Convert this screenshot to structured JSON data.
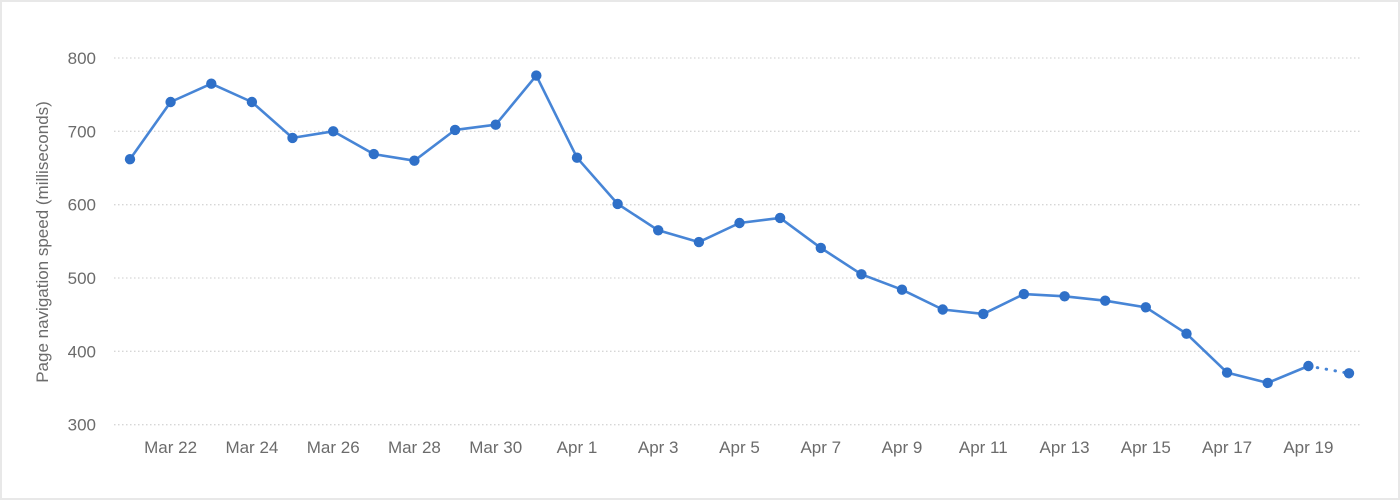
{
  "chart_data": {
    "type": "line",
    "title": "",
    "xlabel": "",
    "ylabel": "Page navigation speed (milliseconds)",
    "x": [
      "Mar 21",
      "Mar 22",
      "Mar 23",
      "Mar 24",
      "Mar 25",
      "Mar 26",
      "Mar 27",
      "Mar 28",
      "Mar 29",
      "Mar 30",
      "Mar 31",
      "Apr 1",
      "Apr 2",
      "Apr 3",
      "Apr 4",
      "Apr 5",
      "Apr 6",
      "Apr 7",
      "Apr 8",
      "Apr 9",
      "Apr 10",
      "Apr 11",
      "Apr 12",
      "Apr 13",
      "Apr 14",
      "Apr 15",
      "Apr 16",
      "Apr 17",
      "Apr 18",
      "Apr 19",
      "Apr 20"
    ],
    "series": [
      {
        "name": "Page navigation speed",
        "values": [
          662,
          740,
          765,
          740,
          691,
          700,
          669,
          660,
          702,
          709,
          776,
          664,
          601,
          565,
          549,
          575,
          582,
          541,
          505,
          484,
          457,
          451,
          478,
          475,
          469,
          460,
          424,
          371,
          357,
          380,
          370
        ]
      }
    ],
    "x_tick_labels": [
      "Mar 22",
      "Mar 24",
      "Mar 26",
      "Mar 28",
      "Mar 30",
      "Apr 1",
      "Apr 3",
      "Apr 5",
      "Apr 7",
      "Apr 9",
      "Apr 11",
      "Apr 13",
      "Apr 15",
      "Apr 17",
      "Apr 19"
    ],
    "y_ticks": [
      300,
      400,
      500,
      600,
      700,
      800
    ],
    "ylim": [
      300,
      800
    ],
    "grid": "horizontal-dotted",
    "legend": "none",
    "marker": "circle",
    "annotations": [
      "final segment from Apr 19 to Apr 20 is drawn dotted"
    ],
    "colors": {
      "line": "#4785d6",
      "marker": "#2f70c8",
      "gridline": "#d6d6d6",
      "tick_text": "#6b6b6b",
      "card_border": "#e8e8e8",
      "background": "#ffffff"
    }
  }
}
